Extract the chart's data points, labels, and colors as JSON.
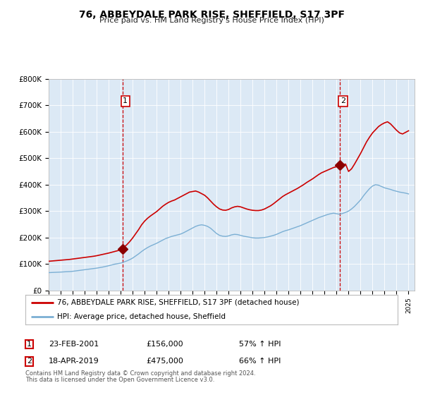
{
  "title": "76, ABBEYDALE PARK RISE, SHEFFIELD, S17 3PF",
  "subtitle": "Price paid vs. HM Land Registry's House Price Index (HPI)",
  "background_color": "#dce9f5",
  "outer_bg_color": "#ffffff",
  "red_line_color": "#cc0000",
  "blue_line_color": "#7bafd4",
  "red_marker_color": "#8b0000",
  "vline_color": "#cc0000",
  "sale1_year": 2001.145,
  "sale1_price": 156000,
  "sale1_label": "1",
  "sale1_date": "23-FEB-2001",
  "sale1_hpi_pct": "57% ↑ HPI",
  "sale2_year": 2019.295,
  "sale2_price": 475000,
  "sale2_label": "2",
  "sale2_date": "18-APR-2019",
  "sale2_hpi_pct": "66% ↑ HPI",
  "xmin": 1995.0,
  "xmax": 2025.5,
  "ymin": 0,
  "ymax": 800000,
  "yticks": [
    0,
    100000,
    200000,
    300000,
    400000,
    500000,
    600000,
    700000,
    800000
  ],
  "ytick_labels": [
    "£0",
    "£100K",
    "£200K",
    "£300K",
    "£400K",
    "£500K",
    "£600K",
    "£700K",
    "£800K"
  ],
  "legend_line1": "76, ABBEYDALE PARK RISE, SHEFFIELD, S17 3PF (detached house)",
  "legend_line2": "HPI: Average price, detached house, Sheffield",
  "footnote1": "Contains HM Land Registry data © Crown copyright and database right 2024.",
  "footnote2": "This data is licensed under the Open Government Licence v3.0.",
  "hpi_data": [
    [
      1995.0,
      67000
    ],
    [
      1995.25,
      67500
    ],
    [
      1995.5,
      68000
    ],
    [
      1995.75,
      68500
    ],
    [
      1996.0,
      69000
    ],
    [
      1996.25,
      69800
    ],
    [
      1996.5,
      70500
    ],
    [
      1996.75,
      71000
    ],
    [
      1997.0,
      72000
    ],
    [
      1997.25,
      73500
    ],
    [
      1997.5,
      75000
    ],
    [
      1997.75,
      76500
    ],
    [
      1998.0,
      78000
    ],
    [
      1998.25,
      79500
    ],
    [
      1998.5,
      81000
    ],
    [
      1998.75,
      82500
    ],
    [
      1999.0,
      84000
    ],
    [
      1999.25,
      86000
    ],
    [
      1999.5,
      88000
    ],
    [
      1999.75,
      90500
    ],
    [
      2000.0,
      93000
    ],
    [
      2000.25,
      96000
    ],
    [
      2000.5,
      99000
    ],
    [
      2000.75,
      101000
    ],
    [
      2001.0,
      103000
    ],
    [
      2001.25,
      107000
    ],
    [
      2001.5,
      111000
    ],
    [
      2001.75,
      116000
    ],
    [
      2002.0,
      122000
    ],
    [
      2002.25,
      130000
    ],
    [
      2002.5,
      138000
    ],
    [
      2002.75,
      147000
    ],
    [
      2003.0,
      155000
    ],
    [
      2003.25,
      162000
    ],
    [
      2003.5,
      168000
    ],
    [
      2003.75,
      173000
    ],
    [
      2004.0,
      178000
    ],
    [
      2004.25,
      184000
    ],
    [
      2004.5,
      190000
    ],
    [
      2004.75,
      196000
    ],
    [
      2005.0,
      200000
    ],
    [
      2005.25,
      204000
    ],
    [
      2005.5,
      207000
    ],
    [
      2005.75,
      210000
    ],
    [
      2006.0,
      213000
    ],
    [
      2006.25,
      218000
    ],
    [
      2006.5,
      224000
    ],
    [
      2006.75,
      230000
    ],
    [
      2007.0,
      236000
    ],
    [
      2007.25,
      242000
    ],
    [
      2007.5,
      246000
    ],
    [
      2007.75,
      248000
    ],
    [
      2008.0,
      246000
    ],
    [
      2008.25,
      242000
    ],
    [
      2008.5,
      235000
    ],
    [
      2008.75,
      225000
    ],
    [
      2009.0,
      215000
    ],
    [
      2009.25,
      208000
    ],
    [
      2009.5,
      205000
    ],
    [
      2009.75,
      204000
    ],
    [
      2010.0,
      206000
    ],
    [
      2010.25,
      210000
    ],
    [
      2010.5,
      212000
    ],
    [
      2010.75,
      211000
    ],
    [
      2011.0,
      208000
    ],
    [
      2011.25,
      205000
    ],
    [
      2011.5,
      203000
    ],
    [
      2011.75,
      201000
    ],
    [
      2012.0,
      199000
    ],
    [
      2012.25,
      198000
    ],
    [
      2012.5,
      198000
    ],
    [
      2012.75,
      199000
    ],
    [
      2013.0,
      200000
    ],
    [
      2013.25,
      202000
    ],
    [
      2013.5,
      205000
    ],
    [
      2013.75,
      208000
    ],
    [
      2014.0,
      212000
    ],
    [
      2014.25,
      217000
    ],
    [
      2014.5,
      222000
    ],
    [
      2014.75,
      226000
    ],
    [
      2015.0,
      229000
    ],
    [
      2015.25,
      233000
    ],
    [
      2015.5,
      237000
    ],
    [
      2015.75,
      241000
    ],
    [
      2016.0,
      245000
    ],
    [
      2016.25,
      250000
    ],
    [
      2016.5,
      255000
    ],
    [
      2016.75,
      260000
    ],
    [
      2017.0,
      265000
    ],
    [
      2017.25,
      270000
    ],
    [
      2017.5,
      275000
    ],
    [
      2017.75,
      279000
    ],
    [
      2018.0,
      283000
    ],
    [
      2018.25,
      287000
    ],
    [
      2018.5,
      290000
    ],
    [
      2018.75,
      292000
    ],
    [
      2019.0,
      290000
    ],
    [
      2019.25,
      288000
    ],
    [
      2019.5,
      291000
    ],
    [
      2019.75,
      295000
    ],
    [
      2020.0,
      300000
    ],
    [
      2020.25,
      308000
    ],
    [
      2020.5,
      318000
    ],
    [
      2020.75,
      330000
    ],
    [
      2021.0,
      342000
    ],
    [
      2021.25,
      358000
    ],
    [
      2021.5,
      372000
    ],
    [
      2021.75,
      385000
    ],
    [
      2022.0,
      395000
    ],
    [
      2022.25,
      400000
    ],
    [
      2022.5,
      398000
    ],
    [
      2022.75,
      393000
    ],
    [
      2023.0,
      388000
    ],
    [
      2023.25,
      385000
    ],
    [
      2023.5,
      382000
    ],
    [
      2023.75,
      378000
    ],
    [
      2024.0,
      375000
    ],
    [
      2024.25,
      372000
    ],
    [
      2024.5,
      370000
    ],
    [
      2024.75,
      368000
    ],
    [
      2025.0,
      365000
    ]
  ],
  "property_data": [
    [
      1995.0,
      110000
    ],
    [
      1995.25,
      111000
    ],
    [
      1995.5,
      112000
    ],
    [
      1995.75,
      113000
    ],
    [
      1996.0,
      114000
    ],
    [
      1996.25,
      115000
    ],
    [
      1996.5,
      116000
    ],
    [
      1996.75,
      117000
    ],
    [
      1997.0,
      118500
    ],
    [
      1997.25,
      120000
    ],
    [
      1997.5,
      121500
    ],
    [
      1997.75,
      123000
    ],
    [
      1998.0,
      124500
    ],
    [
      1998.25,
      126000
    ],
    [
      1998.5,
      127500
    ],
    [
      1998.75,
      129000
    ],
    [
      1999.0,
      131000
    ],
    [
      1999.25,
      133500
    ],
    [
      1999.5,
      136000
    ],
    [
      1999.75,
      138500
    ],
    [
      2000.0,
      141000
    ],
    [
      2000.25,
      144000
    ],
    [
      2000.5,
      147000
    ],
    [
      2000.75,
      150000
    ],
    [
      2001.145,
      156000
    ],
    [
      2001.25,
      162000
    ],
    [
      2001.5,
      172000
    ],
    [
      2001.75,
      184000
    ],
    [
      2002.0,
      198000
    ],
    [
      2002.25,
      214000
    ],
    [
      2002.5,
      230000
    ],
    [
      2002.75,
      248000
    ],
    [
      2003.0,
      262000
    ],
    [
      2003.25,
      273000
    ],
    [
      2003.5,
      282000
    ],
    [
      2003.75,
      290000
    ],
    [
      2004.0,
      298000
    ],
    [
      2004.25,
      308000
    ],
    [
      2004.5,
      318000
    ],
    [
      2004.75,
      326000
    ],
    [
      2005.0,
      333000
    ],
    [
      2005.25,
      338000
    ],
    [
      2005.5,
      342000
    ],
    [
      2005.75,
      348000
    ],
    [
      2006.0,
      354000
    ],
    [
      2006.25,
      360000
    ],
    [
      2006.5,
      366000
    ],
    [
      2006.75,
      372000
    ],
    [
      2007.0,
      374000
    ],
    [
      2007.25,
      376000
    ],
    [
      2007.5,
      372000
    ],
    [
      2007.75,
      366000
    ],
    [
      2008.0,
      360000
    ],
    [
      2008.25,
      350000
    ],
    [
      2008.5,
      338000
    ],
    [
      2008.75,
      326000
    ],
    [
      2009.0,
      316000
    ],
    [
      2009.25,
      308000
    ],
    [
      2009.5,
      304000
    ],
    [
      2009.75,
      303000
    ],
    [
      2010.0,
      306000
    ],
    [
      2010.25,
      312000
    ],
    [
      2010.5,
      316000
    ],
    [
      2010.75,
      318000
    ],
    [
      2011.0,
      316000
    ],
    [
      2011.25,
      312000
    ],
    [
      2011.5,
      308000
    ],
    [
      2011.75,
      305000
    ],
    [
      2012.0,
      303000
    ],
    [
      2012.25,
      302000
    ],
    [
      2012.5,
      302000
    ],
    [
      2012.75,
      304000
    ],
    [
      2013.0,
      308000
    ],
    [
      2013.25,
      314000
    ],
    [
      2013.5,
      320000
    ],
    [
      2013.75,
      328000
    ],
    [
      2014.0,
      337000
    ],
    [
      2014.25,
      346000
    ],
    [
      2014.5,
      355000
    ],
    [
      2014.75,
      362000
    ],
    [
      2015.0,
      368000
    ],
    [
      2015.25,
      374000
    ],
    [
      2015.5,
      380000
    ],
    [
      2015.75,
      386000
    ],
    [
      2016.0,
      393000
    ],
    [
      2016.25,
      400000
    ],
    [
      2016.5,
      408000
    ],
    [
      2016.75,
      415000
    ],
    [
      2017.0,
      422000
    ],
    [
      2017.25,
      430000
    ],
    [
      2017.5,
      438000
    ],
    [
      2017.75,
      445000
    ],
    [
      2018.0,
      450000
    ],
    [
      2018.25,
      455000
    ],
    [
      2018.5,
      460000
    ],
    [
      2018.75,
      465000
    ],
    [
      2019.0,
      468000
    ],
    [
      2019.25,
      470000
    ],
    [
      2019.295,
      475000
    ],
    [
      2019.5,
      475000
    ],
    [
      2019.75,
      478000
    ],
    [
      2020.0,
      450000
    ],
    [
      2020.25,
      460000
    ],
    [
      2020.5,
      478000
    ],
    [
      2020.75,
      498000
    ],
    [
      2021.0,
      518000
    ],
    [
      2021.25,
      540000
    ],
    [
      2021.5,
      562000
    ],
    [
      2021.75,
      580000
    ],
    [
      2022.0,
      596000
    ],
    [
      2022.25,
      608000
    ],
    [
      2022.5,
      620000
    ],
    [
      2022.75,
      628000
    ],
    [
      2023.0,
      634000
    ],
    [
      2023.25,
      638000
    ],
    [
      2023.5,
      630000
    ],
    [
      2023.75,
      618000
    ],
    [
      2024.0,
      606000
    ],
    [
      2024.25,
      596000
    ],
    [
      2024.5,
      592000
    ],
    [
      2024.75,
      598000
    ],
    [
      2025.0,
      604000
    ]
  ]
}
